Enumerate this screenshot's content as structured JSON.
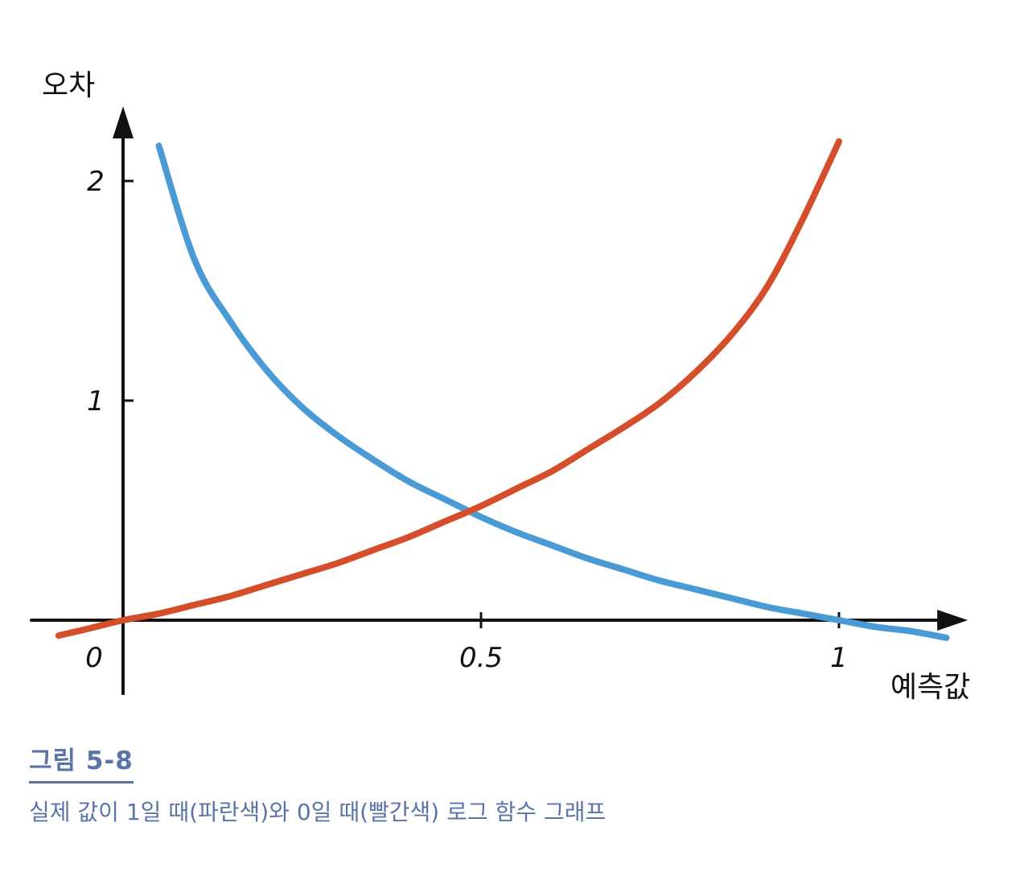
{
  "figure": {
    "title": "그림 5-8",
    "caption": "실제 값이 1일 때(파란색)와 0일 때(빨간색) 로그 함수 그래프"
  },
  "chart_data": {
    "type": "line",
    "ylabel": "오차",
    "xlabel": "예측값",
    "xticks": [
      {
        "value": 0,
        "label": "0"
      },
      {
        "value": 0.5,
        "label": "0.5"
      },
      {
        "value": 1,
        "label": "1"
      }
    ],
    "yticks": [
      {
        "value": 1,
        "label": "1"
      },
      {
        "value": 2,
        "label": "2"
      }
    ],
    "xlim": [
      -0.13,
      1.18
    ],
    "ylim": [
      -0.34,
      2.34
    ],
    "series": [
      {
        "color": "#4a9ad6",
        "x": [
          0.05,
          0.1,
          0.15,
          0.2,
          0.25,
          0.3,
          0.35,
          0.4,
          0.45,
          0.5,
          0.55,
          0.6,
          0.65,
          0.7,
          0.75,
          0.8,
          0.85,
          0.9,
          0.95,
          1.0,
          1.05,
          1.1,
          1.15
        ],
        "values": [
          2.16,
          1.64,
          1.36,
          1.14,
          0.97,
          0.84,
          0.73,
          0.63,
          0.55,
          0.47,
          0.4,
          0.34,
          0.28,
          0.23,
          0.18,
          0.14,
          0.1,
          0.06,
          0.03,
          0.0,
          -0.03,
          -0.05,
          -0.08
        ]
      },
      {
        "color": "#d44e2c",
        "x": [
          -0.09,
          -0.05,
          0.0,
          0.05,
          0.1,
          0.15,
          0.2,
          0.25,
          0.3,
          0.35,
          0.4,
          0.45,
          0.5,
          0.55,
          0.6,
          0.65,
          0.7,
          0.75,
          0.8,
          0.85,
          0.9,
          0.95,
          1.0
        ],
        "values": [
          -0.07,
          -0.04,
          0.0,
          0.03,
          0.07,
          0.11,
          0.16,
          0.21,
          0.26,
          0.32,
          0.38,
          0.45,
          0.52,
          0.6,
          0.68,
          0.78,
          0.88,
          0.99,
          1.13,
          1.3,
          1.52,
          1.83,
          2.18
        ]
      }
    ]
  }
}
